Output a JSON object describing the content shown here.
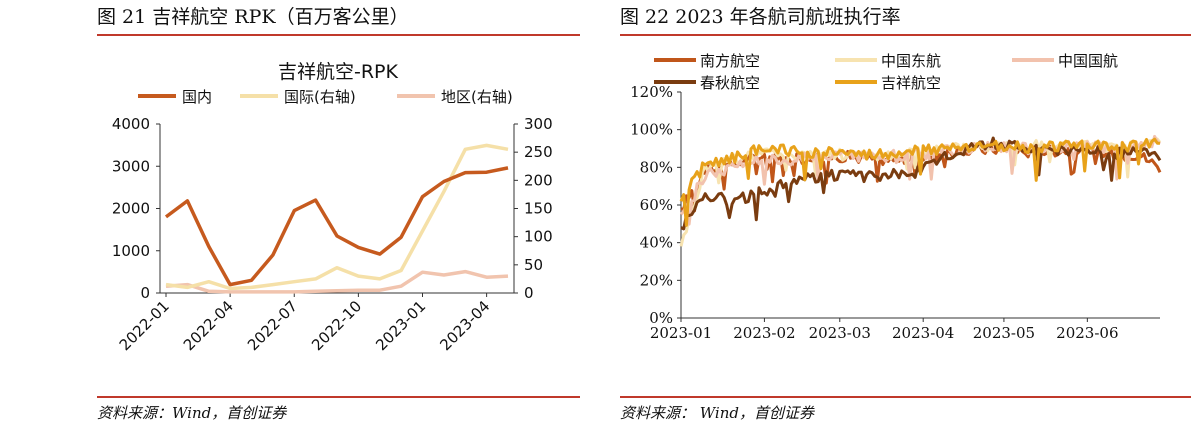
{
  "left_panel": {
    "figure_title": "图 21 吉祥航空 RPK（百万客公里）",
    "source": "资料来源：Wind，首创证券"
  },
  "right_panel": {
    "figure_title": "图 22 2023 年各航司航班执行率",
    "source": "资料来源： Wind，首创证券"
  },
  "chart_data": [
    {
      "type": "line",
      "title": "吉祥航空-RPK",
      "x": [
        "2022-01",
        "2022-02",
        "2022-03",
        "2022-04",
        "2022-05",
        "2022-06",
        "2022-07",
        "2022-08",
        "2022-09",
        "2022-10",
        "2022-11",
        "2022-12",
        "2023-01",
        "2023-02",
        "2023-03",
        "2023-04",
        "2023-05"
      ],
      "x_tick_labels": [
        "2022-01",
        "2022-04",
        "2022-07",
        "2022-10",
        "2023-01",
        "2023-04"
      ],
      "y_left_lim": [
        0,
        4000
      ],
      "y_left_ticks": [
        "0",
        "1000",
        "2000",
        "3000",
        "4000"
      ],
      "y_right_lim": [
        0,
        300
      ],
      "y_right_ticks": [
        "0",
        "50",
        "100",
        "150",
        "200",
        "250",
        "300"
      ],
      "legend_position": "top",
      "grid": false,
      "series": [
        {
          "name": "国内",
          "axis": "left",
          "color": "#c65a1e",
          "values": [
            1800,
            2180,
            1100,
            200,
            300,
            900,
            1950,
            2200,
            1350,
            1080,
            920,
            1320,
            2280,
            2640,
            2850,
            2860,
            2960
          ]
        },
        {
          "name": "国际(右轴)",
          "axis": "right",
          "color": "#f5e0a8",
          "values": [
            15,
            10,
            20,
            8,
            10,
            15,
            20,
            25,
            45,
            30,
            25,
            40,
            110,
            180,
            255,
            262,
            255
          ]
        },
        {
          "name": "地区(右轴)",
          "axis": "right",
          "color": "#f1c4ae",
          "values": [
            12,
            15,
            3,
            2,
            2,
            2,
            2,
            3,
            4,
            5,
            5,
            12,
            37,
            32,
            38,
            28,
            30
          ]
        }
      ]
    },
    {
      "type": "line",
      "title": "",
      "x_tick_labels": [
        "2023-01",
        "2023-02",
        "2023-03",
        "2023-04",
        "2023-05",
        "2023-06"
      ],
      "x_range": [
        "2023-01-01",
        "2023-06-28"
      ],
      "ylim": [
        0,
        120
      ],
      "y_tick_labels": [
        "0%",
        "20%",
        "40%",
        "60%",
        "80%",
        "100%",
        "120%"
      ],
      "legend_position": "top",
      "grid": false,
      "series": [
        {
          "name": "南方航空",
          "color": "#c0561a",
          "points": [
            [
              "2023-01-01",
              58
            ],
            [
              "2023-01-10",
              78
            ],
            [
              "2023-01-20",
              82
            ],
            [
              "2023-01-31",
              86
            ],
            [
              "2023-02-10",
              84
            ],
            [
              "2023-02-20",
              85
            ],
            [
              "2023-02-28",
              86
            ],
            [
              "2023-03-10",
              85
            ],
            [
              "2023-03-20",
              84
            ],
            [
              "2023-03-31",
              85
            ],
            [
              "2023-04-10",
              88
            ],
            [
              "2023-04-20",
              89
            ],
            [
              "2023-04-30",
              90
            ],
            [
              "2023-05-10",
              88
            ],
            [
              "2023-05-20",
              89
            ],
            [
              "2023-05-31",
              90
            ],
            [
              "2023-06-10",
              86
            ],
            [
              "2023-06-20",
              87
            ],
            [
              "2023-06-28",
              80
            ]
          ]
        },
        {
          "name": "中国东航",
          "color": "#f7e3b0",
          "points": [
            [
              "2023-01-01",
              38
            ],
            [
              "2023-01-10",
              80
            ],
            [
              "2023-01-20",
              84
            ],
            [
              "2023-01-31",
              88
            ],
            [
              "2023-02-10",
              87
            ],
            [
              "2023-02-20",
              88
            ],
            [
              "2023-02-28",
              87
            ],
            [
              "2023-03-10",
              86
            ],
            [
              "2023-03-20",
              87
            ],
            [
              "2023-03-31",
              88
            ],
            [
              "2023-04-10",
              90
            ],
            [
              "2023-04-20",
              91
            ],
            [
              "2023-04-30",
              92
            ],
            [
              "2023-05-10",
              91
            ],
            [
              "2023-05-20",
              92
            ],
            [
              "2023-05-31",
              92
            ],
            [
              "2023-06-10",
              90
            ],
            [
              "2023-06-20",
              92
            ],
            [
              "2023-06-28",
              93
            ]
          ]
        },
        {
          "name": "中国国航",
          "color": "#f2c2ad",
          "points": [
            [
              "2023-01-01",
              55
            ],
            [
              "2023-01-10",
              76
            ],
            [
              "2023-01-20",
              80
            ],
            [
              "2023-01-31",
              85
            ],
            [
              "2023-02-10",
              84
            ],
            [
              "2023-02-20",
              86
            ],
            [
              "2023-02-28",
              86
            ],
            [
              "2023-03-10",
              85
            ],
            [
              "2023-03-20",
              86
            ],
            [
              "2023-03-31",
              87
            ],
            [
              "2023-04-10",
              89
            ],
            [
              "2023-04-20",
              90
            ],
            [
              "2023-04-30",
              91
            ],
            [
              "2023-05-10",
              90
            ],
            [
              "2023-05-20",
              91
            ],
            [
              "2023-05-31",
              91
            ],
            [
              "2023-06-10",
              90
            ],
            [
              "2023-06-20",
              92
            ],
            [
              "2023-06-28",
              94
            ]
          ]
        },
        {
          "name": "春秋航空",
          "color": "#7a3c10",
          "points": [
            [
              "2023-01-01",
              48
            ],
            [
              "2023-01-10",
              66
            ],
            [
              "2023-01-20",
              62
            ],
            [
              "2023-01-31",
              67
            ],
            [
              "2023-02-10",
              72
            ],
            [
              "2023-02-20",
              75
            ],
            [
              "2023-02-28",
              76
            ],
            [
              "2023-03-10",
              75
            ],
            [
              "2023-03-20",
              76
            ],
            [
              "2023-03-31",
              78
            ],
            [
              "2023-04-10",
              86
            ],
            [
              "2023-04-20",
              92
            ],
            [
              "2023-04-30",
              93
            ],
            [
              "2023-05-10",
              90
            ],
            [
              "2023-05-20",
              88
            ],
            [
              "2023-05-31",
              89
            ],
            [
              "2023-06-10",
              87
            ],
            [
              "2023-06-20",
              88
            ],
            [
              "2023-06-28",
              86
            ]
          ]
        },
        {
          "name": "吉祥航空",
          "color": "#e8a21a",
          "points": [
            [
              "2023-01-01",
              62
            ],
            [
              "2023-01-10",
              82
            ],
            [
              "2023-01-20",
              85
            ],
            [
              "2023-01-31",
              90
            ],
            [
              "2023-02-10",
              89
            ],
            [
              "2023-02-20",
              88
            ],
            [
              "2023-02-28",
              88
            ],
            [
              "2023-03-10",
              86
            ],
            [
              "2023-03-20",
              87
            ],
            [
              "2023-03-31",
              89
            ],
            [
              "2023-04-10",
              90
            ],
            [
              "2023-04-20",
              91
            ],
            [
              "2023-04-30",
              92
            ],
            [
              "2023-05-10",
              90
            ],
            [
              "2023-05-20",
              91
            ],
            [
              "2023-05-31",
              92
            ],
            [
              "2023-06-10",
              90
            ],
            [
              "2023-06-20",
              92
            ],
            [
              "2023-06-28",
              93
            ]
          ]
        }
      ]
    }
  ]
}
